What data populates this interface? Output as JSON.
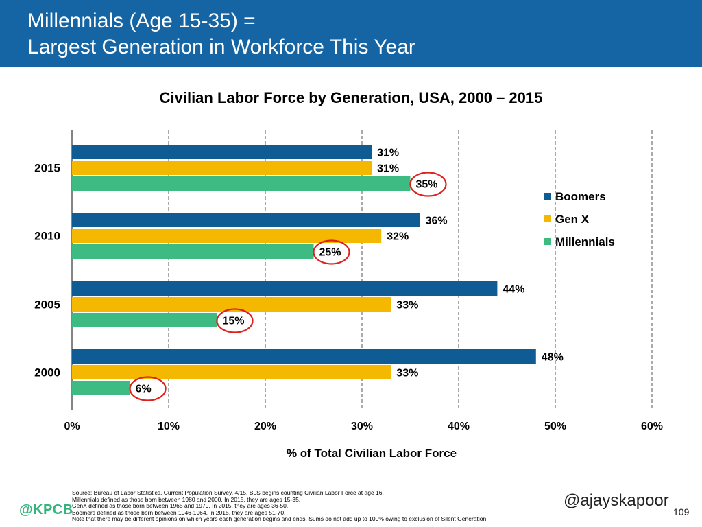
{
  "header": {
    "title_line1": "Millennials (Age 15-35) =",
    "title_line2": "Largest Generation in Workforce This Year"
  },
  "colors": {
    "header_bg": "#1565a4",
    "boomers": "#0f5c94",
    "genx": "#f5b800",
    "millennials": "#3dbb83",
    "highlight_ring": "#e0201c"
  },
  "chart_data": {
    "type": "bar",
    "orientation": "horizontal",
    "title": "Civilian Labor Force by Generation, USA, 2000 – 2015",
    "xlabel": "% of Total Civilian Labor Force",
    "ylabel": "",
    "xlim": [
      0,
      60
    ],
    "x_ticks": [
      "0%",
      "10%",
      "20%",
      "30%",
      "40%",
      "50%",
      "60%"
    ],
    "gridlines": "vertical-dashed",
    "legend_position": "right",
    "categories": [
      "2015",
      "2010",
      "2005",
      "2000"
    ],
    "series": [
      {
        "name": "Boomers",
        "values": [
          31,
          36,
          44,
          48
        ],
        "labels": [
          "31%",
          "36%",
          "44%",
          "48%"
        ]
      },
      {
        "name": "Gen X",
        "values": [
          31,
          32,
          33,
          33
        ],
        "labels": [
          "31%",
          "32%",
          "33%",
          "33%"
        ]
      },
      {
        "name": "Millennials",
        "values": [
          35,
          25,
          15,
          6
        ],
        "labels": [
          "35%",
          "25%",
          "15%",
          "6%"
        ],
        "circled": true
      }
    ]
  },
  "footer": {
    "source_lines": [
      "Source: Bureau of Labor Statistics, Current Population Survey, 4/15. BLS begins counting Civilian Labor Force at age 16.",
      "Millennials defined as those born between 1980 and 2000. In 2015, they are ages 15-35.",
      "GenX defined as those born between 1965 and 1979. In 2015, they are ages 36-50.",
      "Boomers defined as those born between 1946-1964. In 2015, they are ages 51-70.",
      "Note that there may be different opinions on which years each generation begins and ends. Sums do not add up to 100% owing to exclusion of Silent Generation."
    ],
    "logo": "@KPCB",
    "handle": "@ajayskapoor",
    "page_number": "109"
  }
}
